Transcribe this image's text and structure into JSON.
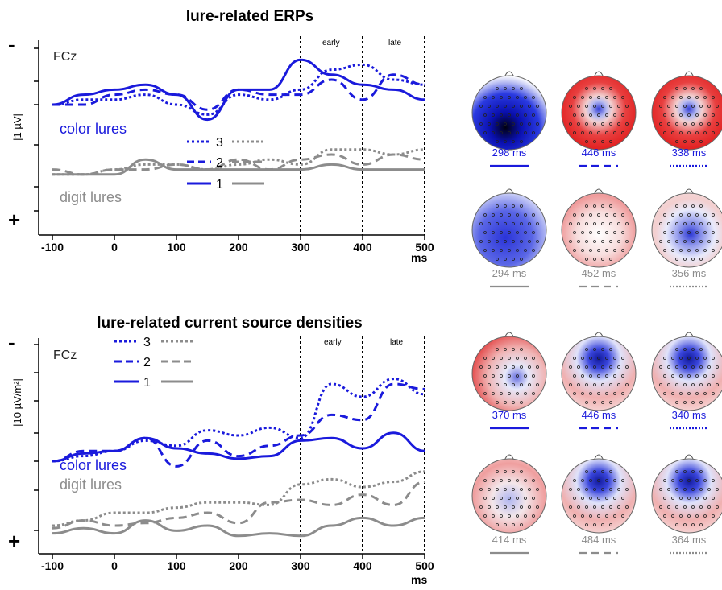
{
  "colors": {
    "color_lures": "#1a1adc",
    "digit_lures": "#8c8c8c",
    "head_blue": "#1a24d8",
    "head_red": "#e02020"
  },
  "panels": [
    {
      "id": "erp",
      "title": "lure-related ERPs",
      "channel": "FCz",
      "scale_label": "|1 µV|",
      "polarity_top": "-",
      "polarity_bottom": "+",
      "color_label": "color lures",
      "digit_label": "digit lures",
      "legend": [
        "3",
        "2",
        "1"
      ],
      "windows": [
        "early",
        "late"
      ]
    },
    {
      "id": "csd",
      "title": "lure-related current source densities",
      "channel": "FCz",
      "scale_label": "|10 µV/m²|",
      "polarity_top": "-",
      "polarity_bottom": "+",
      "color_label": "color lures",
      "digit_label": "digit lures",
      "legend": [
        "3",
        "2",
        "1"
      ],
      "windows": [
        "early",
        "late"
      ]
    }
  ],
  "x_ticks": [
    "-100",
    "0",
    "100",
    "200",
    "300",
    "400",
    "500"
  ],
  "x_unit": "ms",
  "chart_data": [
    {
      "type": "line",
      "title": "lure-related ERPs",
      "xlabel": "ms",
      "ylabel": "|1 µV|",
      "xlim": [
        -100,
        500
      ],
      "ylim": [
        -1.75,
        2.25
      ],
      "y_note": "negative plotted up; values in µV relative to color-lure baseline",
      "markers_ms": [
        300,
        400,
        500
      ],
      "x": [
        -100,
        -50,
        0,
        50,
        100,
        150,
        200,
        250,
        300,
        350,
        400,
        450,
        500
      ],
      "series": [
        {
          "name": "3",
          "group": "color lures",
          "style": "dotted",
          "values": [
            0.0,
            0.1,
            0.1,
            0.2,
            0.0,
            -0.2,
            0.2,
            0.1,
            0.3,
            0.7,
            0.8,
            0.5,
            0.4
          ]
        },
        {
          "name": "2",
          "group": "color lures",
          "style": "dashed",
          "values": [
            0.0,
            0.0,
            0.2,
            0.3,
            0.2,
            -0.1,
            0.3,
            0.2,
            0.2,
            0.5,
            0.1,
            0.6,
            0.4
          ]
        },
        {
          "name": "1",
          "group": "color lures",
          "style": "solid",
          "values": [
            0.0,
            0.2,
            0.3,
            0.4,
            0.2,
            -0.3,
            0.3,
            0.3,
            0.9,
            0.6,
            0.4,
            0.3,
            0.1
          ]
        },
        {
          "name": "3",
          "group": "digit lures",
          "style": "dotted",
          "values": [
            -1.4,
            -1.4,
            -1.3,
            -1.2,
            -1.2,
            -1.3,
            -1.2,
            -1.1,
            -1.2,
            -0.9,
            -0.9,
            -1.0,
            -0.9
          ]
        },
        {
          "name": "2",
          "group": "digit lures",
          "style": "dashed",
          "values": [
            -1.3,
            -1.4,
            -1.3,
            -1.3,
            -1.2,
            -1.3,
            -1.1,
            -1.3,
            -1.1,
            -1.0,
            -1.2,
            -1.0,
            -1.1
          ]
        },
        {
          "name": "1",
          "group": "digit lures",
          "style": "solid",
          "values": [
            -1.4,
            -1.4,
            -1.4,
            -1.1,
            -1.3,
            -1.3,
            -1.3,
            -1.3,
            -1.3,
            -1.2,
            -1.3,
            -1.3,
            -1.3
          ]
        }
      ]
    },
    {
      "type": "line",
      "title": "lure-related current source densities",
      "xlabel": "ms",
      "ylabel": "|10 µV/m²|",
      "xlim": [
        -100,
        500
      ],
      "ylim": [
        -4.0,
        4.0
      ],
      "y_note": "negative plotted up; values in µV/m² ×10 relative to color-lure baseline",
      "markers_ms": [
        300,
        400,
        500
      ],
      "x": [
        -100,
        -50,
        0,
        50,
        100,
        150,
        200,
        250,
        300,
        350,
        400,
        450,
        500
      ],
      "series": [
        {
          "name": "3",
          "group": "color lures",
          "style": "dotted",
          "values": [
            0.0,
            0.2,
            0.4,
            0.8,
            0.6,
            1.2,
            1.0,
            1.3,
            0.9,
            3.0,
            2.5,
            3.2,
            2.6
          ]
        },
        {
          "name": "2",
          "group": "color lures",
          "style": "dashed",
          "values": [
            0.0,
            0.4,
            0.4,
            0.9,
            -0.2,
            0.8,
            0.2,
            0.6,
            1.0,
            1.8,
            1.6,
            3.0,
            2.8
          ]
        },
        {
          "name": "1",
          "group": "color lures",
          "style": "solid",
          "values": [
            0.0,
            0.3,
            0.4,
            0.9,
            0.5,
            0.3,
            0.1,
            0.2,
            0.8,
            0.9,
            0.5,
            1.1,
            0.4
          ]
        },
        {
          "name": "3",
          "group": "digit lures",
          "style": "dotted",
          "values": [
            -2.5,
            -2.3,
            -2.0,
            -2.0,
            -1.8,
            -1.6,
            -1.6,
            -1.7,
            -0.9,
            -0.7,
            -1.0,
            -0.8,
            -0.4
          ]
        },
        {
          "name": "2",
          "group": "digit lures",
          "style": "dashed",
          "values": [
            -2.6,
            -2.3,
            -2.5,
            -2.4,
            -2.2,
            -2.0,
            -2.4,
            -1.6,
            -1.5,
            -1.7,
            -1.3,
            -1.7,
            -0.8
          ]
        },
        {
          "name": "1",
          "group": "digit lures",
          "style": "solid",
          "values": [
            -2.8,
            -2.6,
            -2.8,
            -2.3,
            -2.7,
            -2.5,
            -2.9,
            -2.8,
            -2.9,
            -2.5,
            -2.2,
            -2.5,
            -2.2
          ]
        }
      ]
    }
  ],
  "topographies": [
    {
      "label": "298 ms",
      "group": "color",
      "style": "solid",
      "map": "blue-broad"
    },
    {
      "label": "446 ms",
      "group": "color",
      "style": "dashed",
      "map": "red-center-blue"
    },
    {
      "label": "338 ms",
      "group": "color",
      "style": "dotted",
      "map": "red-center-blue"
    },
    {
      "label": "294 ms",
      "group": "digit",
      "style": "solid",
      "map": "blue-broad-light"
    },
    {
      "label": "452 ms",
      "group": "digit",
      "style": "dashed",
      "map": "pale-red"
    },
    {
      "label": "356 ms",
      "group": "digit",
      "style": "dotted",
      "map": "blue-center"
    },
    {
      "label": "370 ms",
      "group": "color",
      "style": "solid",
      "map": "csd-mixed"
    },
    {
      "label": "446 ms",
      "group": "color",
      "style": "dashed",
      "map": "csd-frontal-blue"
    },
    {
      "label": "340 ms",
      "group": "color",
      "style": "dotted",
      "map": "csd-frontal-blue"
    },
    {
      "label": "414 ms",
      "group": "digit",
      "style": "solid",
      "map": "csd-mixed-light"
    },
    {
      "label": "484 ms",
      "group": "digit",
      "style": "dashed",
      "map": "csd-frontal-blue"
    },
    {
      "label": "364 ms",
      "group": "digit",
      "style": "dotted",
      "map": "csd-frontal-blue"
    }
  ]
}
